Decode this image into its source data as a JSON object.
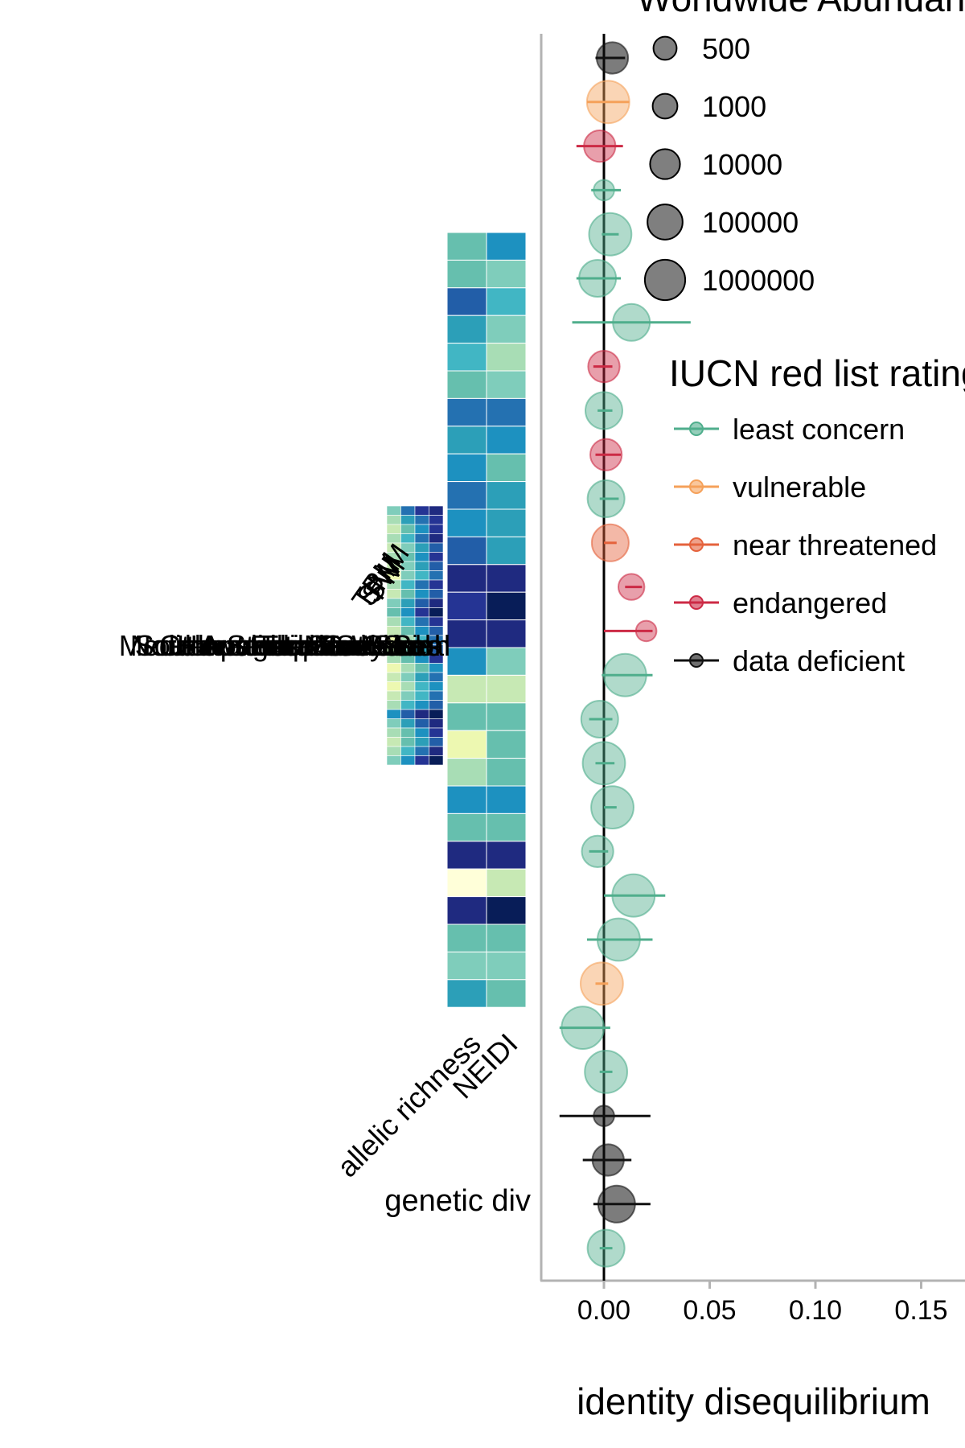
{
  "chart_data": {
    "type": "scatter",
    "title": "",
    "xlabel": "identity disequilibrium",
    "ylabel": "",
    "xlim": [
      -0.03,
      0.16
    ],
    "x_ticks": [
      {
        "value": 0.0,
        "label": "0.00"
      },
      {
        "value": 0.05,
        "label": "0.05"
      },
      {
        "value": 0.1,
        "label": "0.10"
      },
      {
        "value": 0.15,
        "label": "0.15"
      }
    ],
    "reference_line": 0.0,
    "grid": false,
    "size_legend": {
      "title": "Worldwide Abundance",
      "entries": [
        {
          "label": "500",
          "value": 500
        },
        {
          "label": "1000",
          "value": 1000
        },
        {
          "label": "10000",
          "value": 10000
        },
        {
          "label": "100000",
          "value": 100000
        },
        {
          "label": "1000000",
          "value": 1000000
        }
      ]
    },
    "color_legend": {
      "title": "IUCN red list rating",
      "placement": "right",
      "entries": [
        {
          "label": "least concern",
          "key": "lc",
          "color": "#4fae8c"
        },
        {
          "label": "vulnerable",
          "key": "vu",
          "color": "#f5a15a"
        },
        {
          "label": "near threatened",
          "key": "nt",
          "color": "#e5623c"
        },
        {
          "label": "endangered",
          "key": "en",
          "color": "#cc2a45"
        },
        {
          "label": "data deficient",
          "key": "dd",
          "color": "#111111"
        }
      ]
    },
    "series": [
      {
        "x": 0.004,
        "lo": -0.004,
        "hi": 0.01,
        "cat": "dd",
        "size": 10000
      },
      {
        "x": 0.002,
        "lo": -0.008,
        "hi": 0.012,
        "cat": "vu",
        "size": 1000000
      },
      {
        "x": -0.002,
        "lo": -0.013,
        "hi": 0.009,
        "cat": "en",
        "size": 10000
      },
      {
        "x": 0.0,
        "lo": -0.006,
        "hi": 0.008,
        "cat": "lc",
        "size": 100
      },
      {
        "x": 0.003,
        "lo": -0.001,
        "hi": 0.007,
        "cat": "lc",
        "size": 1000000
      },
      {
        "x": -0.003,
        "lo": -0.013,
        "hi": 0.008,
        "cat": "lc",
        "size": 100000
      },
      {
        "x": 0.013,
        "lo": -0.015,
        "hi": 0.041,
        "cat": "lc",
        "size": 100000
      },
      {
        "x": 0.0,
        "lo": -0.005,
        "hi": 0.004,
        "cat": "en",
        "size": 10000
      },
      {
        "x": 0.0,
        "lo": -0.003,
        "hi": 0.004,
        "cat": "lc",
        "size": 100000
      },
      {
        "x": 0.001,
        "lo": -0.004,
        "hi": 0.008,
        "cat": "en",
        "size": 10000
      },
      {
        "x": 0.001,
        "lo": -0.002,
        "hi": 0.007,
        "cat": "lc",
        "size": 100000
      },
      {
        "x": 0.003,
        "lo": 0.0,
        "hi": 0.006,
        "cat": "nt",
        "size": 100000
      },
      {
        "x": 0.013,
        "lo": 0.01,
        "hi": 0.018,
        "cat": "en",
        "size": 1000
      },
      {
        "x": 0.02,
        "lo": 0.0,
        "hi": 0.023,
        "cat": "en",
        "size": 100
      },
      {
        "x": 0.01,
        "lo": -0.001,
        "hi": 0.023,
        "cat": "lc",
        "size": 1000000
      },
      {
        "x": -0.002,
        "lo": -0.007,
        "hi": 0.004,
        "cat": "lc",
        "size": 100000
      },
      {
        "x": 0.0,
        "lo": -0.004,
        "hi": 0.005,
        "cat": "lc",
        "size": 1000000
      },
      {
        "x": 0.004,
        "lo": 0.0,
        "hi": 0.006,
        "cat": "lc",
        "size": 1000000
      },
      {
        "x": -0.003,
        "lo": -0.007,
        "hi": 0.002,
        "cat": "lc",
        "size": 10000
      },
      {
        "x": 0.014,
        "lo": 0.0,
        "hi": 0.029,
        "cat": "lc",
        "size": 1000000
      },
      {
        "x": 0.007,
        "lo": -0.008,
        "hi": 0.023,
        "cat": "lc",
        "size": 1000000
      },
      {
        "x": -0.001,
        "lo": -0.004,
        "hi": 0.002,
        "cat": "vu",
        "size": 1000000
      },
      {
        "x": -0.01,
        "lo": -0.021,
        "hi": 0.003,
        "cat": "lc",
        "size": 1000000
      },
      {
        "x": 0.001,
        "lo": -0.002,
        "hi": 0.004,
        "cat": "lc",
        "size": 1000000
      },
      {
        "x": 0.0,
        "lo": -0.021,
        "hi": 0.022,
        "cat": "dd",
        "size": 100
      },
      {
        "x": 0.002,
        "lo": -0.01,
        "hi": 0.013,
        "cat": "dd",
        "size": 10000
      },
      {
        "x": 0.006,
        "lo": -0.005,
        "hi": 0.022,
        "cat": "dd",
        "size": 100000
      },
      {
        "x": 0.001,
        "lo": -0.002,
        "hi": 0.004,
        "cat": "lc",
        "size": 100000
      }
    ]
  },
  "heatmap": {
    "type": "heatmap",
    "columns": [
      "allelic richness",
      "NEIDI"
    ],
    "row_label": "genetic div",
    "palette": [
      "#ffffd9",
      "#edf8b1",
      "#c7e9b4",
      "#a8ddb5",
      "#7fcdbb",
      "#66bfae",
      "#41b6c4",
      "#2c9fb8",
      "#1d91c0",
      "#2471b1",
      "#225ea8",
      "#253494",
      "#1f2a80",
      "#081d58"
    ],
    "rows": [
      [
        5,
        8
      ],
      [
        5,
        4
      ],
      [
        10,
        6
      ],
      [
        7,
        4
      ],
      [
        6,
        3
      ],
      [
        5,
        4
      ],
      [
        9,
        9
      ],
      [
        7,
        8
      ],
      [
        8,
        5
      ],
      [
        9,
        7
      ],
      [
        8,
        7
      ],
      [
        10,
        7
      ],
      [
        12,
        12
      ],
      [
        11,
        13
      ],
      [
        12,
        12
      ],
      [
        8,
        4
      ],
      [
        2,
        2
      ],
      [
        5,
        5
      ],
      [
        1,
        5
      ],
      [
        3,
        5
      ],
      [
        8,
        8
      ],
      [
        5,
        5
      ],
      [
        12,
        12
      ],
      [
        0,
        2
      ],
      [
        12,
        13
      ],
      [
        5,
        5
      ],
      [
        4,
        4
      ],
      [
        7,
        5
      ]
    ],
    "mini_heatmap": {
      "columns": [
        "TPM",
        "SMM",
        "SW",
        "PM"
      ],
      "rows": [
        [
          4,
          9,
          11,
          12
        ],
        [
          3,
          7,
          9,
          11
        ],
        [
          2,
          5,
          8,
          11
        ],
        [
          3,
          6,
          9,
          12
        ],
        [
          2,
          4,
          7,
          10
        ],
        [
          3,
          5,
          8,
          11
        ],
        [
          2,
          4,
          7,
          10
        ],
        [
          1,
          4,
          6,
          9
        ],
        [
          3,
          6,
          9,
          11
        ],
        [
          2,
          5,
          8,
          10
        ],
        [
          4,
          7,
          10,
          12
        ],
        [
          5,
          8,
          11,
          13
        ],
        [
          3,
          6,
          9,
          11
        ],
        [
          2,
          5,
          8,
          10
        ],
        [
          1,
          3,
          6,
          9
        ],
        [
          2,
          4,
          7,
          10
        ],
        [
          3,
          5,
          8,
          11
        ],
        [
          1,
          3,
          5,
          8
        ],
        [
          2,
          4,
          7,
          9
        ],
        [
          1,
          3,
          6,
          8
        ],
        [
          2,
          4,
          6,
          9
        ],
        [
          3,
          6,
          8,
          10
        ],
        [
          8,
          10,
          12,
          13
        ],
        [
          4,
          7,
          10,
          12
        ],
        [
          3,
          5,
          8,
          11
        ],
        [
          2,
          5,
          7,
          10
        ],
        [
          3,
          6,
          9,
          12
        ],
        [
          4,
          8,
          11,
          13
        ]
      ]
    },
    "overlap_labels": [
      "Mediterranean Monk Seal",
      "Southern Elephant Seal",
      "Northern Elephant Seal",
      "Galapagos Sea Lion",
      "Australian Sea Lion",
      "Hawaiian Monk Seal",
      "Antarctic Fur Seal",
      "Harbour Seal",
      "Grey Seal",
      "Walrus",
      "Steller Sea Lion"
    ]
  }
}
